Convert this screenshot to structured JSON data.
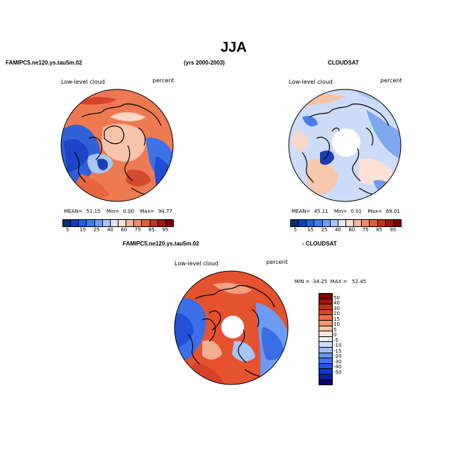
{
  "page": {
    "title": "JJA"
  },
  "headers": {
    "left": "FAMIPC5.ne120.ys.tau5m.02",
    "center": "(yrs 2000-2003)",
    "right": "CLOUDSAT",
    "diff_left": "FAMIPC5.ne120.ys.tau5m.02",
    "diff_right": "- CLOUDSAT"
  },
  "panels": [
    {
      "id": "model",
      "field_label": "Low-level cloud",
      "units": "percent",
      "stats": {
        "mean_label": "MEAN=",
        "mean": "51.15",
        "min_label": "Min=",
        "min": "0.00",
        "max_label": "Max=",
        "max": "94.77"
      },
      "colorbar": {
        "colors": [
          "#08306b",
          "#0b3fbf",
          "#1f5fe0",
          "#3b7ee8",
          "#6ea0f0",
          "#a6c4f5",
          "#dce8fb",
          "#fde0d2",
          "#f9b49a",
          "#f28b68",
          "#e35b3c",
          "#c8321d",
          "#9e1a0e",
          "#7f0000"
        ],
        "ticks": [
          "5",
          "15",
          "25",
          "40",
          "60",
          "75",
          "85",
          "95"
        ]
      }
    },
    {
      "id": "obs",
      "field_label": "Low-level cloud",
      "units": "percent",
      "stats": {
        "mean_label": "MEAN=",
        "mean": "45.11",
        "min_label": "Min=",
        "min": "0.01",
        "max_label": "Max=",
        "max": "69.01"
      },
      "colorbar": {
        "colors": [
          "#08306b",
          "#0b3fbf",
          "#1f5fe0",
          "#3b7ee8",
          "#6ea0f0",
          "#a6c4f5",
          "#dce8fb",
          "#fde0d2",
          "#f9b49a",
          "#f28b68",
          "#e35b3c",
          "#c8321d",
          "#9e1a0e",
          "#7f0000"
        ],
        "ticks": [
          "5",
          "15",
          "25",
          "40",
          "60",
          "75",
          "85",
          "95"
        ]
      }
    },
    {
      "id": "diff",
      "field_label": "Low-level cloud",
      "units": "percent",
      "minmax_text": "MIN = -34.25  MAX =   52.45",
      "colorbar": {
        "colors": [
          "#08006b",
          "#0b1fa8",
          "#1236d0",
          "#2456e6",
          "#3f74ee",
          "#6a96f2",
          "#9cbcf6",
          "#cbdcfb",
          "#ecf2fe",
          "#fde4d8",
          "#fbc1a6",
          "#f6956e",
          "#ee6a42",
          "#de4422",
          "#c42a12",
          "#a31808",
          "#7f0000"
        ],
        "ticks": [
          "50",
          "40",
          "30",
          "20",
          "15",
          "10",
          "5",
          "0",
          "-5",
          "-10",
          "-15",
          "-20",
          "-30",
          "-40",
          "-50"
        ]
      }
    }
  ]
}
